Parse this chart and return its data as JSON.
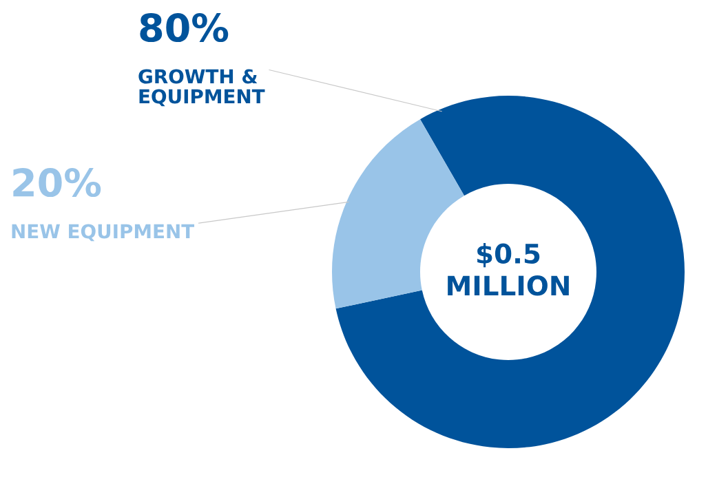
{
  "chart_data": {
    "type": "donut",
    "categories": [
      "GROWTH &\nEQUIPMENT",
      "NEW EQUIPMENT"
    ],
    "values": [
      80,
      20
    ],
    "value_labels": [
      "80%",
      "20%"
    ],
    "colors": [
      "#00539b",
      "#99c4e8"
    ],
    "annotations": [
      "$0.5\nMILLION"
    ]
  }
}
